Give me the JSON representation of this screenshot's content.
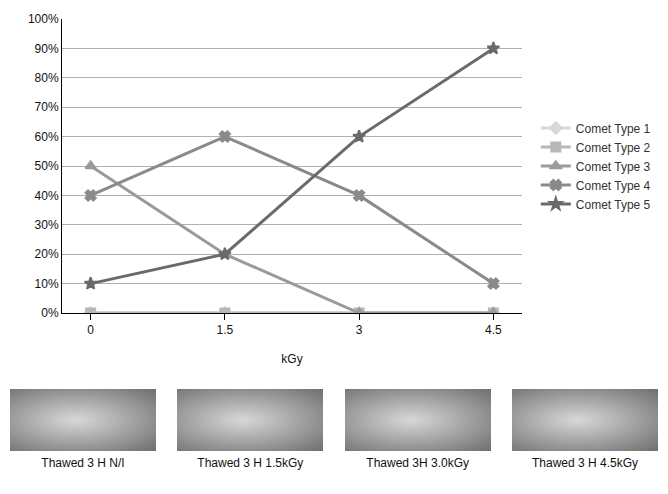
{
  "chart_data": {
    "type": "line",
    "xlabel": "kGy",
    "categories": [
      "0",
      "1.5",
      "3",
      "4.5"
    ],
    "series": [
      {
        "name": "Comet Type 1",
        "color": "#d9d9d9",
        "marker": "diamond",
        "values": [
          0,
          0,
          0,
          0
        ]
      },
      {
        "name": "Comet Type 2",
        "color": "#b8b8b8",
        "marker": "square",
        "values": [
          0,
          0,
          0,
          0
        ]
      },
      {
        "name": "Comet Type 3",
        "color": "#9a9a9a",
        "marker": "triangle-up",
        "values": [
          50,
          20,
          0,
          0
        ]
      },
      {
        "name": "Comet Type 4",
        "color": "#8a8a8a",
        "marker": "x",
        "values": [
          40,
          60,
          40,
          10
        ]
      },
      {
        "name": "Comet Type 5",
        "color": "#6a6a6a",
        "marker": "star",
        "values": [
          10,
          20,
          60,
          90
        ]
      }
    ],
    "ylim": [
      0,
      100
    ],
    "yticks": [
      {
        "value": 0,
        "label": "0%"
      },
      {
        "value": 10,
        "label": "10%"
      },
      {
        "value": 20,
        "label": "20%"
      },
      {
        "value": 30,
        "label": "30%"
      },
      {
        "value": 40,
        "label": "40%"
      },
      {
        "value": 50,
        "label": "50%"
      },
      {
        "value": 60,
        "label": "60%"
      },
      {
        "value": 70,
        "label": "70%"
      },
      {
        "value": 80,
        "label": "80%"
      },
      {
        "value": 90,
        "label": "90%"
      },
      {
        "value": 100,
        "label": "100%"
      }
    ],
    "grid": true,
    "legend": "right"
  },
  "images": {
    "captions": [
      "Thawed 3 H N/I",
      "Thawed 3 H 1.5kGy",
      "Thawed 3H 3.0kGy",
      "Thawed 3 H 4.5kGy"
    ]
  }
}
